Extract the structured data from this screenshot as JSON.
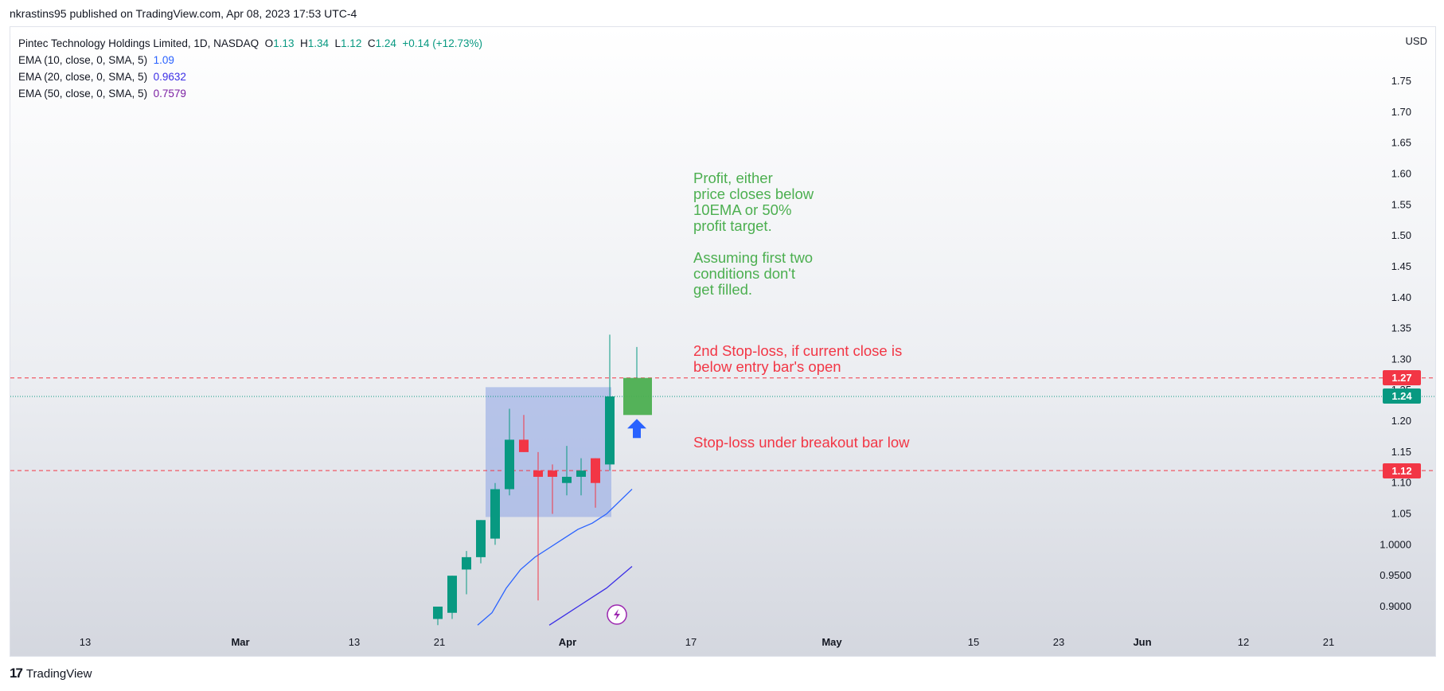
{
  "header": {
    "published": "nkrastins95 published on TradingView.com, Apr 08, 2023 17:53 UTC-4"
  },
  "legend": {
    "symbol": "Pintec Technology Holdings Limited, 1D, NASDAQ",
    "o_label": "O",
    "o": "1.13",
    "h_label": "H",
    "h": "1.34",
    "l_label": "L",
    "l": "1.12",
    "c_label": "C",
    "c": "1.24",
    "change": "+0.14 (+12.73%)",
    "ema10_label": "EMA (10, close, 0, SMA, 5)",
    "ema10_value": "1.09",
    "ema20_label": "EMA (20, close, 0, SMA, 5)",
    "ema20_value": "0.9632",
    "ema50_label": "EMA (50, close, 0, SMA, 5)",
    "ema50_value": "0.7579"
  },
  "axis": {
    "currency": "USD"
  },
  "annotations": {
    "profit": "Profit, either\nprice closes below\n10EMA or 50%\nprofit target.\n\nAssuming first two\nconditions don't\nget filled.",
    "stop2": "2nd Stop-loss, if current close is\nbelow entry bar's open",
    "stop1": "Stop-loss under breakout bar low"
  },
  "price_tags": {
    "upper": "1.27",
    "current": "1.24",
    "lower": "1.12"
  },
  "footer": {
    "brand": "TradingView"
  },
  "colors": {
    "up": "#089981",
    "down": "#f23645",
    "ema10": "#2962ff",
    "ema20": "#3b2ee6",
    "ema50": "#7b1fa2",
    "box": "#9fb2e6",
    "arrow": "#2962ff",
    "entry_box": "#4caf50"
  },
  "chart_data": {
    "type": "candlestick",
    "ylim": [
      0.87,
      1.79
    ],
    "y_ticks": [
      "1.75",
      "1.70",
      "1.65",
      "1.60",
      "1.55",
      "1.50",
      "1.45",
      "1.40",
      "1.35",
      "1.30",
      "1.25",
      "1.20",
      "1.15",
      "1.10",
      "1.05",
      "1.0000",
      "0.9500",
      "0.9000"
    ],
    "x_ticks": [
      "13",
      "Mar",
      "13",
      "21",
      "Apr",
      "17",
      "May",
      "15",
      "23",
      "Jun",
      "12",
      "21"
    ],
    "candles": [
      {
        "date": "Mar 21",
        "o": 0.88,
        "h": 0.9,
        "l": 0.87,
        "c": 0.9
      },
      {
        "date": "Mar 22",
        "o": 0.89,
        "h": 0.95,
        "l": 0.88,
        "c": 0.95
      },
      {
        "date": "Mar 23",
        "o": 0.96,
        "h": 0.99,
        "l": 0.92,
        "c": 0.98
      },
      {
        "date": "Mar 24",
        "o": 0.98,
        "h": 1.04,
        "l": 0.97,
        "c": 1.04
      },
      {
        "date": "Mar 27",
        "o": 1.01,
        "h": 1.1,
        "l": 1.0,
        "c": 1.09
      },
      {
        "date": "Mar 28",
        "o": 1.09,
        "h": 1.22,
        "l": 1.08,
        "c": 1.17
      },
      {
        "date": "Mar 29",
        "o": 1.17,
        "h": 1.21,
        "l": 1.15,
        "c": 1.15
      },
      {
        "date": "Mar 30",
        "o": 1.12,
        "h": 1.15,
        "l": 0.91,
        "c": 1.11
      },
      {
        "date": "Mar 31",
        "o": 1.12,
        "h": 1.13,
        "l": 1.05,
        "c": 1.11
      },
      {
        "date": "Apr 03",
        "o": 1.1,
        "h": 1.16,
        "l": 1.08,
        "c": 1.11
      },
      {
        "date": "Apr 04",
        "o": 1.11,
        "h": 1.14,
        "l": 1.08,
        "c": 1.12
      },
      {
        "date": "Apr 05",
        "o": 1.14,
        "h": 1.14,
        "l": 1.06,
        "c": 1.1
      },
      {
        "date": "Apr 06",
        "o": 1.13,
        "h": 1.34,
        "l": 1.12,
        "c": 1.24
      }
    ],
    "ema10": [
      [
        1.04,
        1.035
      ],
      [
        1.07,
        1.05
      ]
    ],
    "ema": [
      {
        "name": "EMA 10",
        "points": [
          0.87,
          0.89,
          0.93,
          0.96,
          0.98,
          0.995,
          1.01,
          1.025,
          1.035,
          1.05,
          1.09
        ]
      },
      {
        "name": "EMA 20",
        "points": [
          0.87,
          0.885,
          0.9,
          0.915,
          0.93,
          0.965
        ]
      }
    ],
    "ema10_dates": [
      "Mar 24",
      "Mar 27",
      "Mar 28",
      "Mar 29",
      "Mar 30",
      "Mar 31",
      "Apr 03",
      "Apr 04",
      "Apr 05",
      "Apr 06",
      "Apr 07"
    ],
    "ema20_dates": [
      "Mar 31",
      "Apr 03",
      "Apr 04",
      "Apr 05",
      "Apr 06",
      "Apr 07"
    ],
    "horizontal_lines": [
      {
        "price": 1.27,
        "style": "dashed",
        "color": "#f23645"
      },
      {
        "price": 1.12,
        "style": "dashed",
        "color": "#f23645"
      },
      {
        "price": 1.24,
        "style": "dotted",
        "color": "#089981"
      }
    ],
    "consolidation_box": {
      "from": "Mar 27",
      "to": "Apr 06",
      "top": 1.255,
      "bottom": 1.045
    },
    "entry_box": {
      "date": "Apr 07",
      "top": 1.27,
      "bottom": 1.21,
      "wick_high": 1.32
    }
  }
}
